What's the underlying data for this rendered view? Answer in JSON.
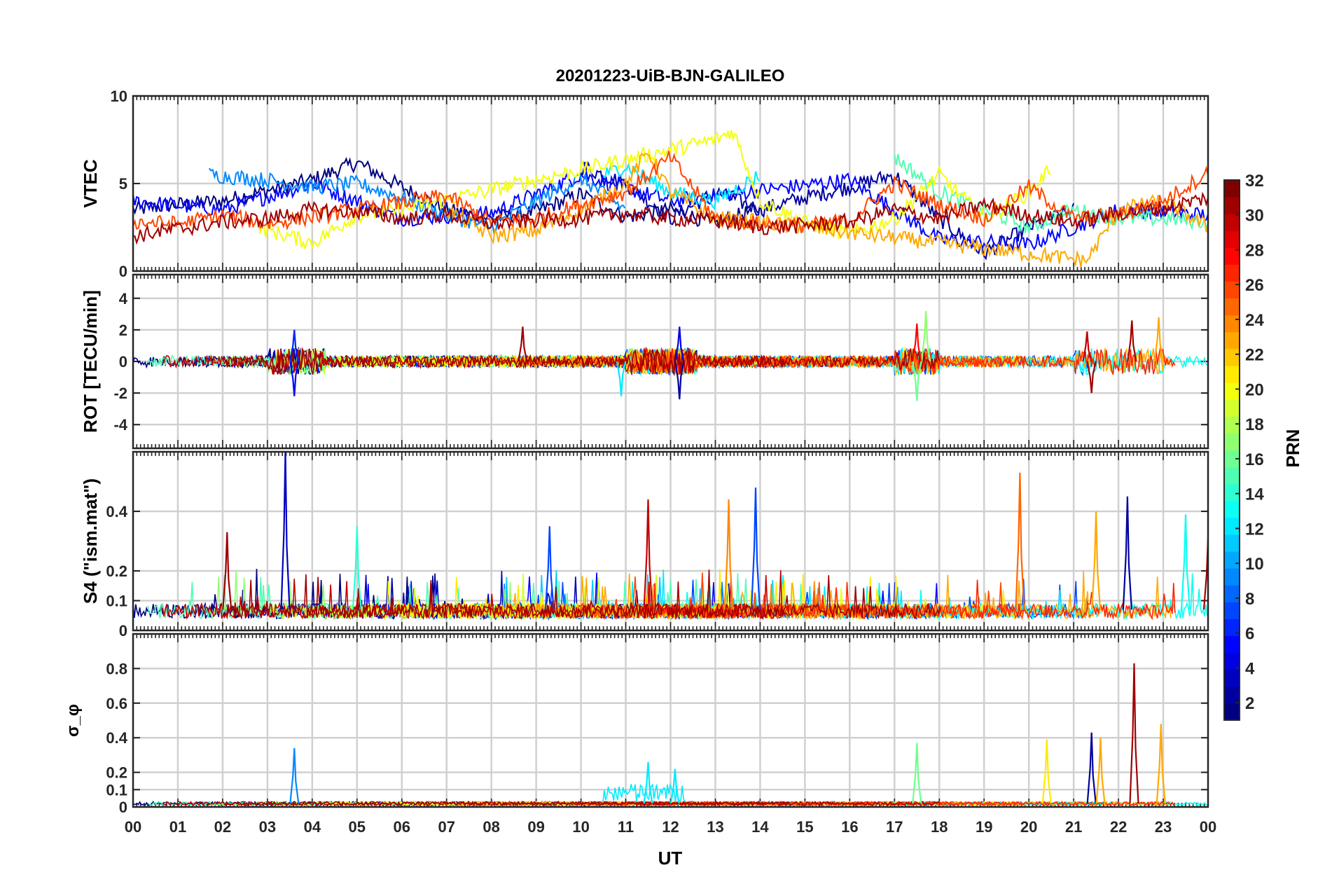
{
  "chart_data": {
    "type": "line",
    "title": "20201223-UiB-BJN-GALILEO",
    "xlabel": "UT",
    "x_ticks": [
      "00",
      "01",
      "02",
      "03",
      "04",
      "05",
      "06",
      "07",
      "08",
      "09",
      "10",
      "11",
      "12",
      "13",
      "14",
      "15",
      "16",
      "17",
      "18",
      "19",
      "20",
      "21",
      "22",
      "23",
      "00"
    ],
    "xlim_hours": [
      0,
      24
    ],
    "colorbar": {
      "label": "PRN",
      "range": [
        1,
        32
      ],
      "ticks": [
        "2",
        "4",
        "6",
        "8",
        "10",
        "12",
        "14",
        "16",
        "18",
        "20",
        "22",
        "24",
        "26",
        "28",
        "30",
        "32"
      ]
    },
    "panels": [
      {
        "name": "VTEC",
        "ylabel": "VTEC",
        "ylim": [
          0,
          10
        ],
        "yticks": [
          "0",
          "5",
          "10"
        ],
        "series": [
          {
            "prn": 1,
            "x": [
              0,
              1,
              2,
              3,
              4,
              5,
              6,
              7,
              8,
              9,
              10,
              11,
              12,
              13,
              14
            ],
            "y": [
              3.5,
              3.8,
              4.0,
              4.6,
              5.2,
              6.2,
              4.8,
              3.5,
              3.0,
              3.4,
              4.4,
              3.1,
              3.5,
              2.7,
              3.6
            ]
          },
          {
            "prn": 2,
            "x": [
              10,
              11,
              12,
              13,
              14,
              15,
              16,
              17,
              18,
              19,
              20,
              21
            ],
            "y": [
              6.0,
              5.0,
              3.0,
              4.5,
              3.5,
              4.2,
              4.8,
              5.5,
              3.0,
              1.0,
              2.5,
              3.5
            ]
          },
          {
            "prn": 5,
            "x": [
              0,
              2,
              4,
              6,
              8,
              10,
              12,
              14,
              16,
              18,
              20,
              22,
              24
            ],
            "y": [
              4.0,
              3.5,
              5.0,
              3.0,
              3.3,
              5.5,
              4.0,
              4.6,
              5.2,
              1.8,
              1.5,
              3.5,
              3.2
            ]
          },
          {
            "prn": 9,
            "x": [
              1.7,
              3,
              4,
              5,
              6,
              7,
              8,
              9,
              10,
              11
            ],
            "y": [
              5.5,
              5.2,
              4.8,
              5.0,
              4.2,
              3.2,
              2.5,
              4.0,
              5.3,
              3.5
            ]
          },
          {
            "prn": 12,
            "x": [
              10.5,
              11,
              12,
              13,
              14
            ],
            "y": [
              5.5,
              6.0,
              4.5,
              4.0,
              5.5
            ]
          },
          {
            "prn": 15,
            "x": [
              17,
              18,
              19,
              20,
              21,
              22,
              23,
              24
            ],
            "y": [
              6.5,
              4.5,
              3.5,
              2.5,
              3.5,
              3.0,
              3.0,
              2.8
            ]
          },
          {
            "prn": 20,
            "x": [
              2.8,
              4,
              5,
              6,
              13,
              13.4,
              14,
              15,
              16,
              17,
              18,
              19,
              20,
              20.5
            ],
            "y": [
              2.5,
              1.6,
              3.2,
              3.5,
              7.5,
              8.0,
              4.0,
              2.8,
              2.1,
              3.0,
              5.5,
              3.0,
              4.5,
              5.9
            ]
          },
          {
            "prn": 23,
            "x": [
              7,
              8,
              9,
              10,
              11,
              11.5,
              12,
              13,
              14,
              21.3,
              22,
              23,
              24
            ],
            "y": [
              3.5,
              2.0,
              2.3,
              3.5,
              5.0,
              6.8,
              4.5,
              3.0,
              2.8,
              0.6,
              3.5,
              4.0,
              2.5
            ]
          },
          {
            "prn": 26,
            "x": [
              0,
              1,
              2,
              3,
              7,
              8,
              9,
              10,
              11,
              12,
              13,
              14,
              15,
              16,
              17,
              18,
              19,
              20,
              21,
              22,
              23,
              24
            ],
            "y": [
              2.8,
              2.7,
              3.2,
              2.7,
              4.3,
              2.8,
              3.0,
              3.8,
              4.5,
              6.5,
              3.0,
              2.7,
              2.6,
              2.9,
              5.0,
              3.8,
              3.0,
              4.8,
              3.0,
              3.2,
              4.0,
              5.6
            ]
          },
          {
            "prn": 31,
            "x": [
              0,
              1,
              2,
              3,
              4,
              5,
              6,
              7,
              8,
              9,
              10,
              11,
              12,
              13,
              14,
              15,
              16,
              17,
              18,
              19,
              20,
              21,
              22,
              23,
              24
            ],
            "y": [
              2.0,
              2.4,
              2.8,
              3.0,
              3.5,
              3.4,
              3.0,
              3.2,
              2.7,
              2.9,
              3.0,
              3.3,
              3.0,
              2.9,
              2.5,
              2.6,
              2.8,
              3.5,
              3.0,
              3.8,
              3.2,
              2.8,
              3.3,
              3.6,
              4.2
            ]
          }
        ]
      },
      {
        "name": "ROT",
        "ylabel": "ROT [TECU/min]",
        "ylim": [
          -5.5,
          5.5
        ],
        "yticks": [
          "-4",
          "-2",
          "0",
          "2",
          "4"
        ],
        "peaks": [
          {
            "prn": 5,
            "x": 3.6,
            "y": -2.2
          },
          {
            "prn": 6,
            "x": 3.6,
            "y": 2.0
          },
          {
            "prn": 31,
            "x": 8.7,
            "y": 2.2
          },
          {
            "prn": 12,
            "x": 10.9,
            "y": -2.2
          },
          {
            "prn": 4,
            "x": 12.2,
            "y": 2.2
          },
          {
            "prn": 2,
            "x": 12.2,
            "y": -2.4
          },
          {
            "prn": 16,
            "x": 17.5,
            "y": -2.5
          },
          {
            "prn": 17,
            "x": 17.7,
            "y": 3.2
          },
          {
            "prn": 28,
            "x": 17.5,
            "y": 2.4
          },
          {
            "prn": 30,
            "x": 21.3,
            "y": 1.9
          },
          {
            "prn": 31,
            "x": 21.4,
            "y": -2.0
          },
          {
            "prn": 31,
            "x": 22.3,
            "y": 2.6
          },
          {
            "prn": 23,
            "x": 22.9,
            "y": 2.8
          }
        ]
      },
      {
        "name": "S4",
        "ylabel": "S4 (\"ism.mat\")",
        "ylim": [
          0,
          0.6
        ],
        "yticks": [
          "0",
          "0.1",
          "0.2",
          "0.4"
        ],
        "peaks": [
          {
            "prn": 3,
            "x": 3.4,
            "y": 0.6
          },
          {
            "prn": 14,
            "x": 5.0,
            "y": 0.35
          },
          {
            "prn": 7,
            "x": 9.3,
            "y": 0.35
          },
          {
            "prn": 30,
            "x": 11.5,
            "y": 0.44
          },
          {
            "prn": 24,
            "x": 13.3,
            "y": 0.44
          },
          {
            "prn": 7,
            "x": 13.9,
            "y": 0.48
          },
          {
            "prn": 25,
            "x": 19.8,
            "y": 0.53
          },
          {
            "prn": 2,
            "x": 22.2,
            "y": 0.45
          },
          {
            "prn": 23,
            "x": 21.5,
            "y": 0.4
          },
          {
            "prn": 13,
            "x": 23.5,
            "y": 0.39
          },
          {
            "prn": 31,
            "x": 24.0,
            "y": 0.31
          },
          {
            "prn": 31,
            "x": 2.1,
            "y": 0.33
          }
        ]
      },
      {
        "name": "sigma_phi",
        "ylabel": "σ_φ",
        "ylim": [
          0,
          1.0
        ],
        "yticks": [
          "0",
          "0.1",
          "0.2",
          "0.4",
          "0.6",
          "0.8"
        ],
        "peaks": [
          {
            "prn": 9,
            "x": 3.6,
            "y": 0.34
          },
          {
            "prn": 12,
            "x": 11.5,
            "y": 0.26
          },
          {
            "prn": 12,
            "x": 12.1,
            "y": 0.22
          },
          {
            "prn": 16,
            "x": 17.5,
            "y": 0.37
          },
          {
            "prn": 21,
            "x": 20.4,
            "y": 0.39
          },
          {
            "prn": 2,
            "x": 21.4,
            "y": 0.43
          },
          {
            "prn": 23,
            "x": 21.6,
            "y": 0.4
          },
          {
            "prn": 31,
            "x": 22.35,
            "y": 0.83
          },
          {
            "prn": 23,
            "x": 22.95,
            "y": 0.48
          }
        ]
      }
    ]
  }
}
